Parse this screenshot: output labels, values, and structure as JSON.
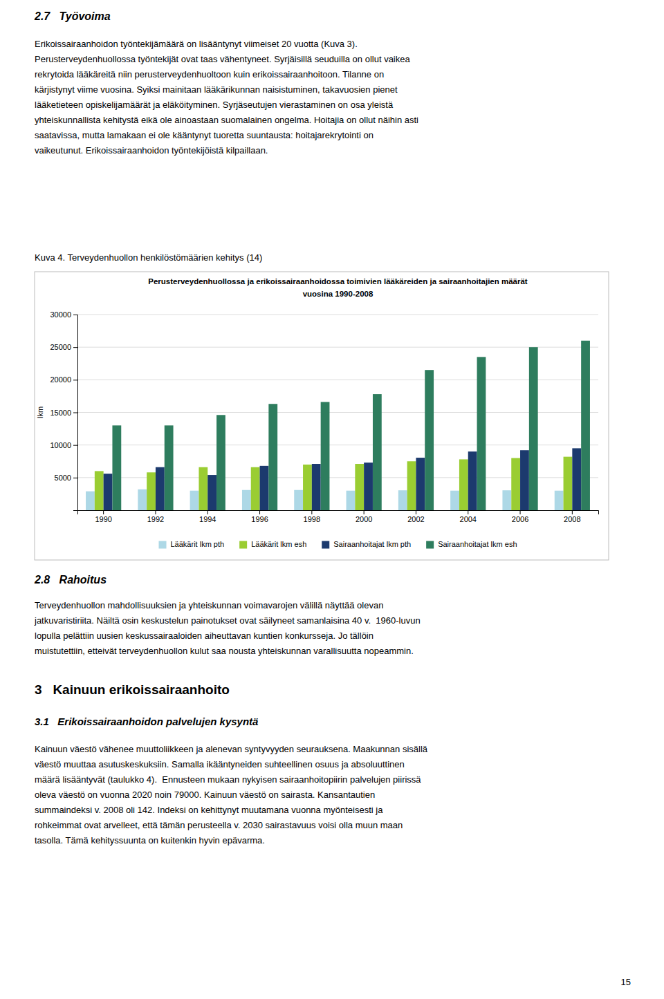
{
  "section_27_heading": "2.7   Työvoima",
  "section_27_body": [
    "Erikoissairaanhoidon työntekijämäärä on lisääntynyt viimeiset 20 vuotta (Kuva 3).",
    "Perusterveydenhuollossa työntekijät ovat taas vähentyneet. Syrjäisillä seuduilla on ollut vaikea",
    "rekrytoida lääkäreitä niin perusterveydenhuoltoon kuin erikoissairaanhoitoon. Tilanne on",
    "kärjistynyt viime vuosina. Syiksi mainitaan lääkärikunnan naisistuminen, takavuosien pienet",
    "lääketieteen opiskelijamäärät ja eläköityminen. Syrjäseutujen vierastaminen on osa yleistä",
    "yhteiskunnallista kehitystä eikä ole ainoastaan suomalainen ongelma. Hoitajia on ollut näihin asti",
    "saatavissa, mutta lamakaan ei ole kääntynyt tuoretta suuntausta: hoitajarekrytointi on",
    "vaikeutunut. Erikoissairaanhoidon työntekijöistä kilpaillaan."
  ],
  "kuva4_caption": "Kuva 4. Terveydenhuollon henkilöstömäärien kehitys (14)",
  "chart_data": {
    "type": "bar",
    "title": "Perusterveydenhuollossa ja erikoissairaanhoidossa toimivien lääkäreiden ja sairaanhoitajien määrät",
    "subtitle": "vuosina 1990-2008",
    "y_label": "lkm",
    "categories": [
      1990,
      1992,
      1994,
      1996,
      1998,
      2000,
      2002,
      2004,
      2006,
      2008
    ],
    "series": [
      {
        "name": "Lääkärit lkm pth",
        "color": "#add8e6",
        "values": [
          2900,
          3200,
          3000,
          3100,
          3100,
          3000,
          3050,
          3000,
          3050,
          3000
        ]
      },
      {
        "name": "Lääkärit lkm esh",
        "color": "#9acd32",
        "values": [
          6000,
          5800,
          6600,
          6600,
          7000,
          7100,
          7500,
          7800,
          8000,
          8200
        ]
      },
      {
        "name": "Sairaanhoitajat lkm pth",
        "color": "#1c3a6e",
        "values": [
          5600,
          6600,
          5400,
          6800,
          7100,
          7300,
          8050,
          9000,
          9200,
          9500
        ]
      },
      {
        "name": "Sairaanhoitajat lkm esh",
        "color": "#2e7d5e",
        "values": [
          13000,
          13000,
          14600,
          16300,
          16600,
          17800,
          21500,
          23500,
          25000,
          26000
        ]
      }
    ],
    "ylim": [
      0,
      30000
    ],
    "yticks": [
      5000,
      10000,
      15000,
      20000,
      25000,
      30000
    ],
    "grid": true,
    "legend": "bottom"
  },
  "section_28_heading": "2.8   Rahoitus",
  "section_28_body": [
    "Terveydenhuollon mahdollisuuksien ja yhteiskunnan voimavarojen välillä näyttää olevan",
    "jatkuvaristiriita. Näiltä osin keskustelun painotukset ovat säilyneet samanlaisina 40 v.  1960-luvun",
    "lopulla pelättiin uusien keskussairaaloiden aiheuttavan kuntien konkursseja. Jo tällöin",
    "muistutettiin, etteivät terveydenhuollon kulut saa nousta yhteiskunnan varallisuutta nopeammin."
  ],
  "section_3_heading": "3   Kainuun erikoissairaanhoito",
  "section_31_heading": "3.1   Erikoissairaanhoidon palvelujen kysyntä",
  "section_31_body": [
    "Kainuun väestö vähenee muuttoliikkeen ja alenevan syntyvyyden seurauksena. Maakunnan sisällä",
    "väestö muuttaa asutuskeskuksiin. Samalla ikääntyneiden suhteellinen osuus ja absoluuttinen",
    "määrä lisääntyvät (taulukko 4).  Ennusteen mukaan nykyisen sairaanhoitopiirin palvelujen piirissä",
    "oleva väestö on vuonna 2020 noin 79000. Kainuun väestö on sairasta. Kansantautien",
    "summaindeksi v. 2008 oli 142. Indeksi on kehittynyt muutamana vuonna myönteisesti ja",
    "rohkeimmat ovat arvelleet, että tämän perusteella v. 2030 sairastavuus voisi olla muun maan",
    "tasolla. Tämä kehityssuunta on kuitenkin hyvin epävarma."
  ],
  "page_number": "15"
}
